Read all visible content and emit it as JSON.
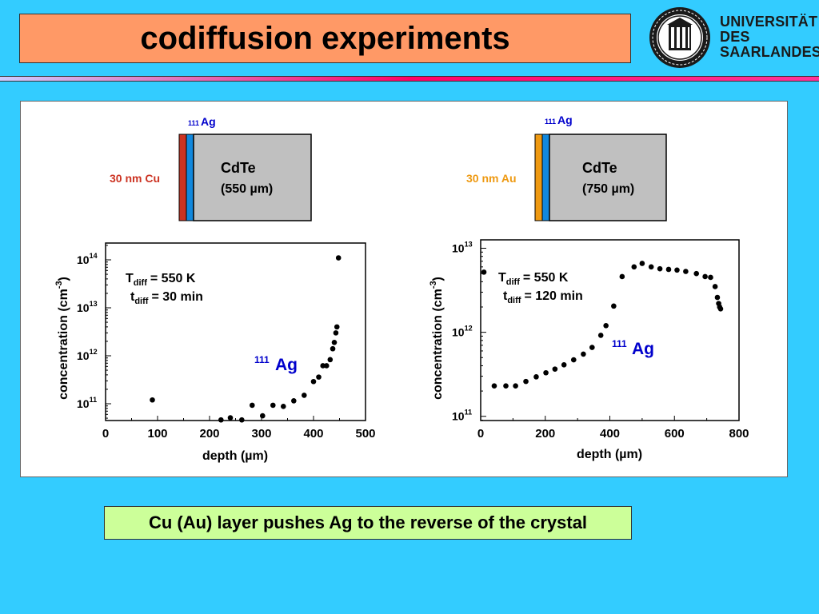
{
  "header": {
    "title": "codiffusion experiments",
    "university": [
      "UNIVERSITÄT",
      "DES",
      "SAARLANDES"
    ]
  },
  "left": {
    "isotope_mass": "111",
    "isotope_symbol": "Ag",
    "layer_label": "30 nm Cu",
    "layer_color": "#cc3322",
    "crystal_name": "CdTe",
    "crystal_thickness": "(550 µm)",
    "params": {
      "t_label": "T",
      "t_sub": "diff",
      "t_value": "= 550 K",
      "time_label": "t",
      "time_sub": "diff",
      "time_value": "= 30 min"
    }
  },
  "right": {
    "isotope_mass": "111",
    "isotope_symbol": "Ag",
    "layer_label": "30 nm Au",
    "layer_color": "#ee9911",
    "crystal_name": "CdTe",
    "crystal_thickness": "(750 µm)",
    "params": {
      "t_label": "T",
      "t_sub": "diff",
      "t_value": "= 550 K",
      "time_label": "t",
      "time_sub": "diff",
      "time_value": "= 120 min"
    }
  },
  "conclusion": "Cu (Au) layer pushes Ag to the reverse of the crystal",
  "colors": {
    "background": "#33ccff",
    "title_box": "#ff9966",
    "conclusion_box": "#ccff99",
    "isotope_text": "#0000cc",
    "source_layer": "#1188dd",
    "crystal": "#c0c0c0"
  },
  "chart_data": [
    {
      "type": "scatter",
      "xlabel": "depth  (µm)",
      "ylabel": "concentration  (cm-3)",
      "ylabel_main": "concentration  (cm",
      "ylabel_sup": "-3",
      "ylabel_close": ")",
      "y_scale": "log",
      "xlim": [
        0,
        500
      ],
      "ylim_log10": [
        10.65,
        14.35
      ],
      "x_ticks": [
        "0",
        "100",
        "200",
        "300",
        "400",
        "500"
      ],
      "y_ticks": [
        {
          "base": "10",
          "exp": "11"
        },
        {
          "base": "10",
          "exp": "12"
        },
        {
          "base": "10",
          "exp": "13"
        },
        {
          "base": "10",
          "exp": "14"
        }
      ],
      "annotation": {
        "mass": "111",
        "symbol": "Ag"
      },
      "series": [
        {
          "points": [
            [
              90,
              120000000000.0
            ],
            [
              222,
              46000000000.0
            ],
            [
              240,
              51000000000.0
            ],
            [
              262,
              46000000000.0
            ],
            [
              282,
              93000000000.0
            ],
            [
              302,
              56000000000.0
            ],
            [
              322,
              93000000000.0
            ],
            [
              342,
              88000000000.0
            ],
            [
              362,
              115000000000.0
            ],
            [
              382,
              150000000000.0
            ],
            [
              400,
              290000000000.0
            ],
            [
              410,
              360000000000.0
            ],
            [
              418,
              620000000000.0
            ],
            [
              425,
              620000000000.0
            ],
            [
              432,
              830000000000.0
            ],
            [
              437,
              1400000000000.0
            ],
            [
              440,
              1900000000000.0
            ],
            [
              443,
              3000000000000.0
            ],
            [
              445,
              4000000000000.0
            ],
            [
              448,
              110000000000000.0
            ]
          ]
        }
      ]
    },
    {
      "type": "scatter",
      "xlabel": "depth  (µm)",
      "ylabel": "concentration  (cm-3)",
      "ylabel_main": "concentration  (cm",
      "ylabel_sup": "-3",
      "ylabel_close": ")",
      "y_scale": "log",
      "xlim": [
        0,
        800
      ],
      "ylim_log10": [
        10.95,
        13.1
      ],
      "x_ticks": [
        "0",
        "200",
        "400",
        "600",
        "800"
      ],
      "y_ticks": [
        {
          "base": "10",
          "exp": "11"
        },
        {
          "base": "10",
          "exp": "12"
        },
        {
          "base": "10",
          "exp": "13"
        }
      ],
      "annotation": {
        "mass": "111",
        "symbol": "Ag"
      },
      "series": [
        {
          "points": [
            [
              10,
              5200000000000.0
            ],
            [
              42,
              230000000000.0
            ],
            [
              78,
              230000000000.0
            ],
            [
              108,
              230000000000.0
            ],
            [
              140,
              260000000000.0
            ],
            [
              172,
              295000000000.0
            ],
            [
              202,
              330000000000.0
            ],
            [
              230,
              365000000000.0
            ],
            [
              258,
              410000000000.0
            ],
            [
              288,
              470000000000.0
            ],
            [
              318,
              550000000000.0
            ],
            [
              345,
              660000000000.0
            ],
            [
              372,
              920000000000.0
            ],
            [
              388,
              1200000000000.0
            ],
            [
              412,
              2050000000000.0
            ],
            [
              438,
              4600000000000.0
            ],
            [
              475,
              6000000000000.0
            ],
            [
              500,
              6600000000000.0
            ],
            [
              528,
              6000000000000.0
            ],
            [
              555,
              5700000000000.0
            ],
            [
              582,
              5600000000000.0
            ],
            [
              608,
              5500000000000.0
            ],
            [
              635,
              5300000000000.0
            ],
            [
              668,
              5000000000000.0
            ],
            [
              695,
              4600000000000.0
            ],
            [
              712,
              4500000000000.0
            ],
            [
              726,
              3500000000000.0
            ],
            [
              733,
              2600000000000.0
            ],
            [
              737,
              2200000000000.0
            ],
            [
              740,
              2000000000000.0
            ],
            [
              743,
              1900000000000.0
            ]
          ]
        }
      ]
    }
  ]
}
